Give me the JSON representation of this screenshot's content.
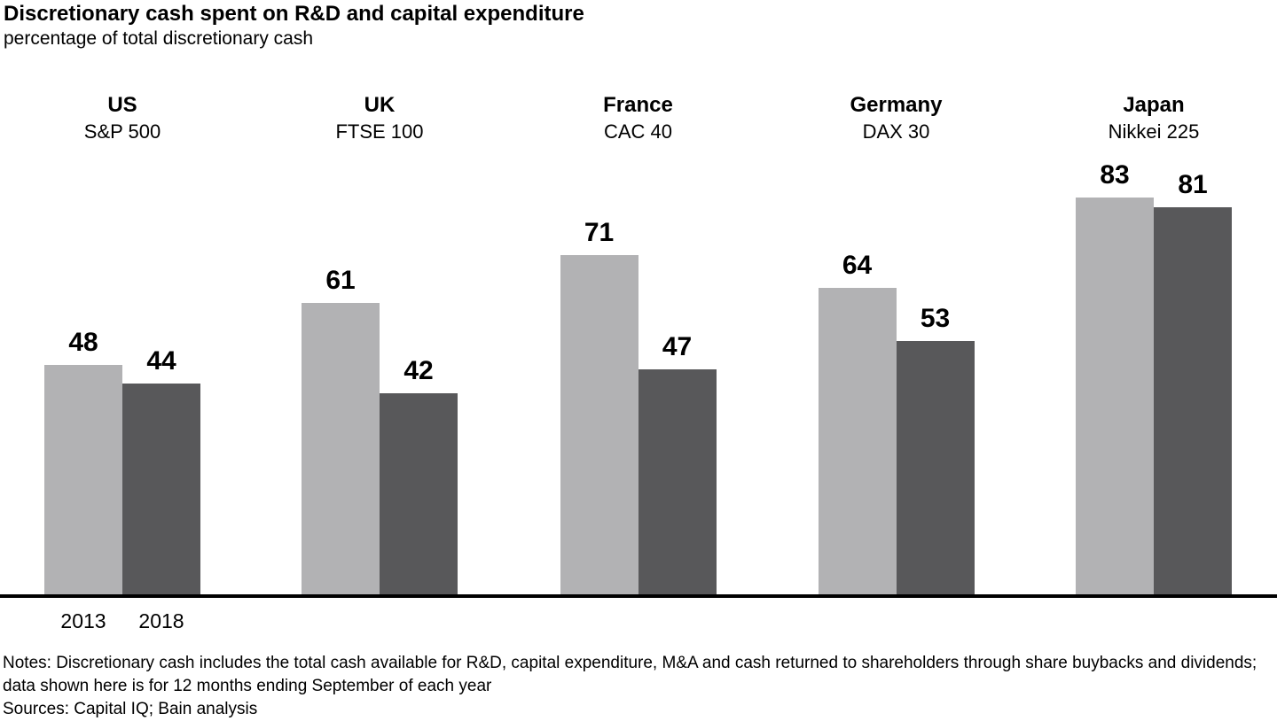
{
  "title": "Discretionary cash spent on R&D and capital expenditure",
  "subtitle": "percentage of total discretionary cash",
  "chart_data": {
    "type": "bar",
    "series_labels": [
      "2013",
      "2018"
    ],
    "groups": [
      {
        "country": "US",
        "index": "S&P 500",
        "values": [
          48,
          44
        ]
      },
      {
        "country": "UK",
        "index": "FTSE 100",
        "values": [
          61,
          42
        ]
      },
      {
        "country": "France",
        "index": "CAC 40",
        "values": [
          71,
          47
        ]
      },
      {
        "country": "Germany",
        "index": "DAX 30",
        "values": [
          64,
          53
        ]
      },
      {
        "country": "Japan",
        "index": "Nikkei 225",
        "values": [
          83,
          81
        ]
      }
    ],
    "colors": {
      "series_2013": "#b2b2b4",
      "series_2018": "#58585a",
      "baseline": "#000000",
      "text": "#000000"
    },
    "value_labels_shown": true,
    "legend_position": "below-axis-left",
    "grid": false,
    "ylim": [
      0,
      100
    ]
  },
  "notes": "Notes: Discretionary cash includes the total cash available for R&D, capital expenditure, M&A and cash returned to shareholders through share buybacks and dividends; data shown here is for 12 months ending September of each year",
  "sources": "Sources: Capital IQ; Bain analysis"
}
